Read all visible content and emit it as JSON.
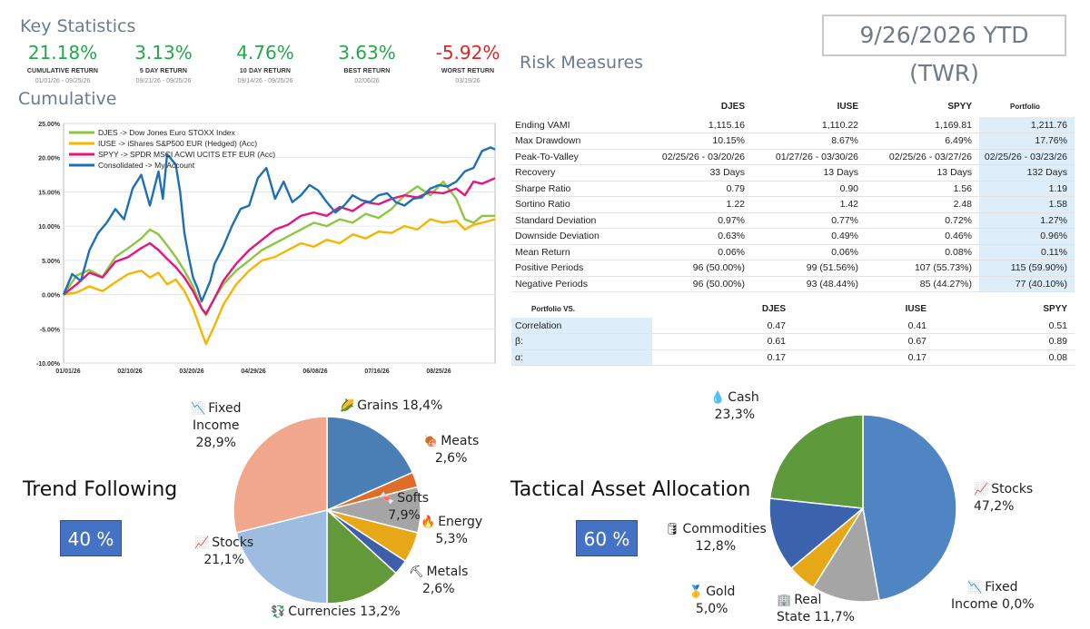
{
  "key_statistics": {
    "title": "Key Statistics",
    "items": [
      {
        "value": "21.18%",
        "label": "CUMULATIVE RETURN",
        "date": "01/01/26 - 09/25/26",
        "negative": false
      },
      {
        "value": "3.13%",
        "label": "5 DAY RETURN",
        "date": "09/21/26 - 09/25/26",
        "negative": false
      },
      {
        "value": "4.76%",
        "label": "10 DAY RETURN",
        "date": "09/14/26 - 09/25/26",
        "negative": false
      },
      {
        "value": "3.63%",
        "label": "BEST RETURN",
        "date": "02/06/26",
        "negative": false
      },
      {
        "value": "-5.92%",
        "label": "WORST RETURN",
        "date": "03/19/26",
        "negative": true
      }
    ]
  },
  "period_badge": "9/26/2026 YTD (TWR)",
  "cumulative_title": "Cumulative",
  "risk_title": "Risk Measures",
  "risk_table": {
    "columns": [
      "DJES",
      "IUSE",
      "SPYY",
      "Portfolio"
    ],
    "rows": [
      {
        "label": "Ending VAMI",
        "values": [
          "1,115.16",
          "1,110.22",
          "1,169.81",
          "1,211.76"
        ]
      },
      {
        "label": "Max Drawdown",
        "values": [
          "10.15%",
          "8.67%",
          "6.49%",
          "17.76%"
        ]
      },
      {
        "label": "Peak-To-Valley",
        "values": [
          "02/25/26 - 03/20/26",
          "01/27/26 - 03/30/26",
          "02/25/26 - 03/27/26",
          "02/25/26 - 03/23/26"
        ]
      },
      {
        "label": "Recovery",
        "values": [
          "33 Days",
          "13 Days",
          "13 Days",
          "132 Days"
        ]
      },
      {
        "label": "Sharpe Ratio",
        "values": [
          "0.79",
          "0.90",
          "1.56",
          "1.19"
        ]
      },
      {
        "label": "Sortino Ratio",
        "values": [
          "1.22",
          "1.42",
          "2.48",
          "1.58"
        ]
      },
      {
        "label": "Standard Deviation",
        "values": [
          "0.97%",
          "0.77%",
          "0.72%",
          "1.27%"
        ]
      },
      {
        "label": "Downside Deviation",
        "values": [
          "0.63%",
          "0.49%",
          "0.46%",
          "0.96%"
        ]
      },
      {
        "label": "Mean Return",
        "values": [
          "0.06%",
          "0.06%",
          "0.08%",
          "0.11%"
        ]
      },
      {
        "label": "Positive Periods",
        "values": [
          "96 (50.00%)",
          "99 (51.56%)",
          "107 (55.73%)",
          "115 (59.90%)"
        ]
      },
      {
        "label": "Negative Periods",
        "values": [
          "96 (50.00%)",
          "93 (48.44%)",
          "85 (44.27%)",
          "77 (40.10%)"
        ]
      }
    ]
  },
  "vs_table": {
    "header": "Portfolio  VS.",
    "columns": [
      "DJES",
      "IUSE",
      "SPYY"
    ],
    "rows": [
      {
        "label": "Correlation",
        "values": [
          "0.47",
          "0.41",
          "0.51"
        ]
      },
      {
        "label": "β:",
        "values": [
          "0.61",
          "0.67",
          "0.89"
        ]
      },
      {
        "label": "α:",
        "values": [
          "0.17",
          "0.17",
          "0.08"
        ]
      }
    ]
  },
  "trend_following": {
    "title": "Trend Following",
    "pct": "40 %"
  },
  "tactical": {
    "title": "Tactical Asset Allocation",
    "pct": "60 %"
  },
  "chart_data": [
    {
      "type": "line",
      "title": "Cumulative",
      "x_ticks": [
        "01/01/26",
        "02/10/26",
        "03/20/26",
        "04/29/26",
        "06/08/26",
        "07/16/26",
        "08/25/26"
      ],
      "y_ticks": [
        "25.00%",
        "20.00%",
        "15.00%",
        "10.00%",
        "5.00%",
        "0.00%",
        "-5.00%",
        "-10.00%"
      ],
      "ylim": [
        -10,
        25
      ],
      "legend_position": "top-left",
      "series": [
        {
          "name": "DJES -> Dow Jones Euro STOXX Index",
          "color": "#8dc63f",
          "points": [
            [
              0,
              0
            ],
            [
              3,
              2.8
            ],
            [
              6,
              3.6
            ],
            [
              9,
              2.6
            ],
            [
              12,
              5.5
            ],
            [
              15,
              6.8
            ],
            [
              18,
              8.2
            ],
            [
              20,
              9.5
            ],
            [
              22,
              8.8
            ],
            [
              24,
              7.2
            ],
            [
              26,
              5.5
            ],
            [
              28,
              3.5
            ],
            [
              30,
              1.2
            ],
            [
              32,
              -2.0
            ],
            [
              33,
              -3.0
            ],
            [
              35,
              -0.5
            ],
            [
              37,
              1.5
            ],
            [
              40,
              3.5
            ],
            [
              43,
              5.0
            ],
            [
              46,
              6.5
            ],
            [
              49,
              7.5
            ],
            [
              52,
              8.5
            ],
            [
              55,
              9.5
            ],
            [
              58,
              10.5
            ],
            [
              61,
              10.0
            ],
            [
              64,
              11.0
            ],
            [
              67,
              10.5
            ],
            [
              70,
              11.8
            ],
            [
              73,
              11.2
            ],
            [
              76,
              12.5
            ],
            [
              79,
              14.5
            ],
            [
              82,
              15.8
            ],
            [
              85,
              14.5
            ],
            [
              88,
              16.5
            ],
            [
              91,
              14.0
            ],
            [
              93,
              11.0
            ],
            [
              95,
              10.5
            ],
            [
              97,
              11.5
            ],
            [
              100,
              11.5
            ]
          ]
        },
        {
          "name": "IUSE -> iShares S&P500 EUR (Hedged) (Acc)",
          "color": "#f7b500",
          "points": [
            [
              0,
              0
            ],
            [
              3,
              0.3
            ],
            [
              6,
              1.2
            ],
            [
              9,
              0.5
            ],
            [
              12,
              1.8
            ],
            [
              15,
              3.0
            ],
            [
              18,
              3.5
            ],
            [
              20,
              2.5
            ],
            [
              22,
              3.2
            ],
            [
              24,
              1.5
            ],
            [
              26,
              2.2
            ],
            [
              28,
              0.5
            ],
            [
              30,
              -2.0
            ],
            [
              32,
              -5.5
            ],
            [
              33,
              -7.2
            ],
            [
              35,
              -4.5
            ],
            [
              37,
              -1.5
            ],
            [
              40,
              1.5
            ],
            [
              43,
              3.5
            ],
            [
              46,
              5.0
            ],
            [
              49,
              5.5
            ],
            [
              52,
              6.5
            ],
            [
              55,
              7.5
            ],
            [
              58,
              7.0
            ],
            [
              61,
              8.0
            ],
            [
              64,
              7.5
            ],
            [
              67,
              8.8
            ],
            [
              70,
              8.2
            ],
            [
              73,
              9.2
            ],
            [
              76,
              9.0
            ],
            [
              79,
              10.0
            ],
            [
              82,
              9.5
            ],
            [
              85,
              11.0
            ],
            [
              88,
              10.5
            ],
            [
              91,
              10.8
            ],
            [
              93,
              9.5
            ],
            [
              95,
              10.2
            ],
            [
              97,
              10.5
            ],
            [
              100,
              11.0
            ]
          ]
        },
        {
          "name": "SPYY -> SPDR MSCI ACWI UCITS ETF EUR (Acc)",
          "color": "#e6177b",
          "points": [
            [
              0,
              0
            ],
            [
              3,
              1.5
            ],
            [
              6,
              3.2
            ],
            [
              9,
              2.5
            ],
            [
              12,
              4.8
            ],
            [
              15,
              5.5
            ],
            [
              18,
              6.8
            ],
            [
              20,
              7.5
            ],
            [
              22,
              6.5
            ],
            [
              24,
              5.2
            ],
            [
              26,
              4.0
            ],
            [
              28,
              2.5
            ],
            [
              30,
              0.5
            ],
            [
              32,
              -2.0
            ],
            [
              33,
              -2.8
            ],
            [
              35,
              -0.5
            ],
            [
              37,
              2.0
            ],
            [
              40,
              4.5
            ],
            [
              43,
              6.5
            ],
            [
              46,
              8.0
            ],
            [
              49,
              9.5
            ],
            [
              52,
              10.2
            ],
            [
              55,
              11.5
            ],
            [
              58,
              12.0
            ],
            [
              61,
              11.5
            ],
            [
              64,
              12.8
            ],
            [
              67,
              12.2
            ],
            [
              70,
              13.5
            ],
            [
              73,
              13.2
            ],
            [
              76,
              14.0
            ],
            [
              79,
              14.5
            ],
            [
              82,
              14.2
            ],
            [
              85,
              15.0
            ],
            [
              88,
              14.8
            ],
            [
              91,
              15.5
            ],
            [
              93,
              14.5
            ],
            [
              95,
              16.5
            ],
            [
              97,
              16.2
            ],
            [
              100,
              17.0
            ]
          ]
        },
        {
          "name": "Consolidated -> My Account",
          "color": "#1f6fb6",
          "points": [
            [
              0,
              0
            ],
            [
              2,
              3.0
            ],
            [
              4,
              2.0
            ],
            [
              6,
              6.5
            ],
            [
              8,
              9.0
            ],
            [
              10,
              10.5
            ],
            [
              12,
              12.5
            ],
            [
              14,
              11.0
            ],
            [
              16,
              15.5
            ],
            [
              18,
              17.5
            ],
            [
              20,
              13.0
            ],
            [
              22,
              18.0
            ],
            [
              23,
              14.0
            ],
            [
              24,
              20.5
            ],
            [
              26,
              19.0
            ],
            [
              27,
              15.0
            ],
            [
              28,
              9.0
            ],
            [
              29,
              5.5
            ],
            [
              30,
              2.5
            ],
            [
              31,
              1.0
            ],
            [
              32,
              -1.0
            ],
            [
              33,
              0.5
            ],
            [
              34,
              2.0
            ],
            [
              35,
              4.5
            ],
            [
              37,
              7.0
            ],
            [
              39,
              10.0
            ],
            [
              41,
              12.5
            ],
            [
              43,
              13.0
            ],
            [
              45,
              17.0
            ],
            [
              47,
              18.5
            ],
            [
              49,
              14.0
            ],
            [
              51,
              16.5
            ],
            [
              53,
              13.5
            ],
            [
              55,
              14.5
            ],
            [
              57,
              16.0
            ],
            [
              59,
              15.2
            ],
            [
              61,
              13.5
            ],
            [
              63,
              12.0
            ],
            [
              65,
              13.0
            ],
            [
              67,
              14.5
            ],
            [
              69,
              13.8
            ],
            [
              71,
              13.5
            ],
            [
              73,
              14.5
            ],
            [
              75,
              14.8
            ],
            [
              77,
              13.5
            ],
            [
              79,
              13.0
            ],
            [
              81,
              14.0
            ],
            [
              83,
              14.2
            ],
            [
              85,
              15.5
            ],
            [
              87,
              16.0
            ],
            [
              89,
              15.8
            ],
            [
              91,
              16.5
            ],
            [
              93,
              18.0
            ],
            [
              95,
              18.5
            ],
            [
              97,
              21.0
            ],
            [
              99,
              21.5
            ],
            [
              100,
              21.2
            ]
          ]
        }
      ]
    },
    {
      "type": "pie",
      "title": "Trend Following",
      "slices": [
        {
          "label": "Grains",
          "value": 18.4,
          "display": "Grains 18,4%",
          "color": "#4a7fb5",
          "icon": "grains-icon",
          "glyph": "🌽"
        },
        {
          "label": "Meats",
          "value": 2.6,
          "display": "Meats\n2,6%",
          "color": "#e06c2c",
          "icon": "meat-icon",
          "glyph": "🍖"
        },
        {
          "label": "Softs",
          "value": 7.9,
          "display": "Softs\n7,9%",
          "color": "#a5a5a5",
          "icon": "softs-icon",
          "glyph": "🍬"
        },
        {
          "label": "Energy",
          "value": 5.3,
          "display": "Energy\n5,3%",
          "color": "#e6a817",
          "icon": "energy-icon",
          "glyph": "🔥"
        },
        {
          "label": "Metals",
          "value": 2.6,
          "display": "Metals\n2,6%",
          "color": "#3f5ea8",
          "icon": "pickaxe-icon",
          "glyph": "⛏"
        },
        {
          "label": "Currencies",
          "value": 13.2,
          "display": "Currencies 13,2%",
          "color": "#64993a",
          "icon": "currency-icon",
          "glyph": "💱"
        },
        {
          "label": "Stocks",
          "value": 21.1,
          "display": "Stocks\n21,1%",
          "color": "#9ebce0",
          "icon": "chart-icon",
          "glyph": "📈"
        },
        {
          "label": "Fixed Income",
          "value": 28.9,
          "display": "Fixed\nIncome\n28,9%",
          "color": "#f0a78b",
          "icon": "chart-down-icon",
          "glyph": "📉"
        }
      ]
    },
    {
      "type": "pie",
      "title": "Tactical Asset Allocation",
      "slices": [
        {
          "label": "Stocks",
          "value": 47.2,
          "display": "Stocks\n47,2%",
          "color": "#4e85c2",
          "icon": "chart-icon",
          "glyph": "📈"
        },
        {
          "label": "Fixed Income",
          "value": 0.0,
          "display": "Fixed\nIncome 0,0%",
          "color": "#e06c2c",
          "icon": "chart-down-icon",
          "glyph": "📉"
        },
        {
          "label": "Real State",
          "value": 11.7,
          "display": "Real\nState 11,7%",
          "color": "#a5a5a5",
          "icon": "building-icon",
          "glyph": "🏢"
        },
        {
          "label": "Gold",
          "value": 5.0,
          "display": "Gold\n5,0%",
          "color": "#e6a817",
          "icon": "medal-icon",
          "glyph": "🥇"
        },
        {
          "label": "Commodities",
          "value": 12.8,
          "display": "Commodities\n12,8%",
          "color": "#3a62ad",
          "icon": "stack-icon",
          "glyph": "🛢"
        },
        {
          "label": "Cash",
          "value": 23.3,
          "display": "Cash\n23,3%",
          "color": "#5e9a3c",
          "icon": "droplet-icon",
          "glyph": "💧"
        }
      ]
    }
  ]
}
